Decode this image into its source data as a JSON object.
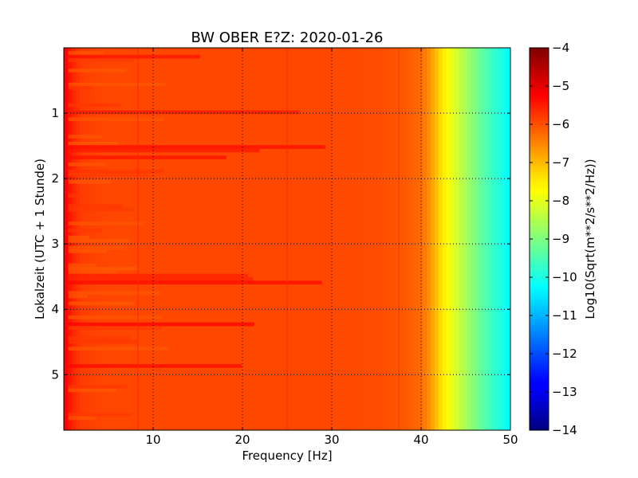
{
  "chart_data": {
    "type": "heatmap",
    "title": "BW OBER E?Z: 2020-01-26",
    "xlabel": "Frequency [Hz]",
    "ylabel": "Lokalzeit (UTC + 1 Stunde)",
    "colorbar_label": "Log10(Sqrt(m**2/s**2/Hz))",
    "xlim": [
      0,
      50
    ],
    "ylim": [
      5.85,
      0
    ],
    "x_ticks": [
      10,
      20,
      30,
      40,
      50
    ],
    "y_ticks": [
      1,
      2,
      3,
      4,
      5
    ],
    "colorbar_range": [
      -14,
      -4
    ],
    "colorbar_ticks": [
      -4,
      -5,
      -6,
      -7,
      -8,
      -9,
      -10,
      -11,
      -12,
      -13,
      -14
    ],
    "colormap": "jet",
    "grid": true,
    "grid_style": "dotted",
    "profile": {
      "frequency_hz": [
        0,
        1,
        2,
        5,
        10,
        20,
        30,
        35,
        38,
        40,
        41,
        42,
        43,
        44,
        45,
        46,
        47,
        48,
        49,
        50
      ],
      "log10_amplitude": [
        -5.2,
        -5.6,
        -5.85,
        -5.95,
        -5.95,
        -5.95,
        -5.95,
        -6.0,
        -6.1,
        -6.3,
        -6.7,
        -7.3,
        -7.8,
        -8.2,
        -8.6,
        -9.0,
        -9.4,
        -9.7,
        -10.0,
        -10.3
      ]
    },
    "strong_rows_hours": [
      0.1,
      0.95,
      1.5,
      1.65,
      3.45,
      3.55,
      4.2,
      4.85
    ],
    "vertical_lines_hz": [
      8.3,
      25,
      37.5
    ]
  }
}
